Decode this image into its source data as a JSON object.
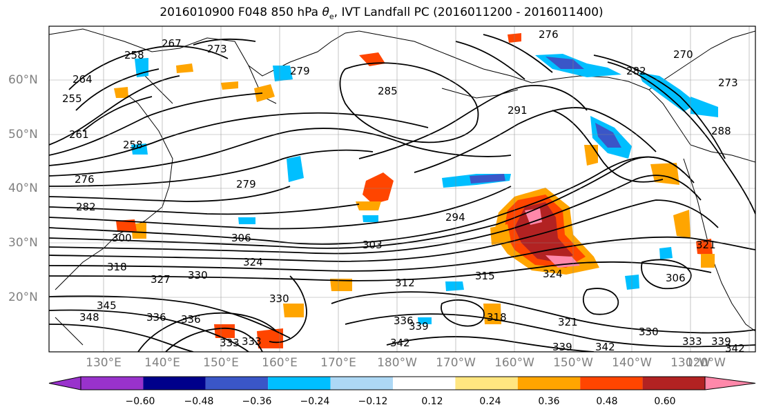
{
  "title_pre": "2016010900 F048 850 hPa ",
  "title_symbol": "θ",
  "title_sub": "e",
  "title_post": ", IVT Landfall PC (2016011200 - 2016011400)",
  "lat_labels": [
    "60°N",
    "50°N",
    "40°N",
    "30°N",
    "20°N"
  ],
  "lon_labels": [
    "130°E",
    "140°E",
    "150°E",
    "160°E",
    "170°E",
    "180°W",
    "170°W",
    "160°W",
    "150°W",
    "140°W",
    "130°W",
    "120°W"
  ],
  "colorbar": {
    "colors": [
      "#9932cc",
      "#00008b",
      "#3a56c8",
      "#00bfff",
      "#add8f5",
      "#ffffff",
      "#ffe680",
      "#ffa500",
      "#ff4500",
      "#b22222",
      "#ff88aa"
    ],
    "tick_labels": [
      "−0.60",
      "−0.48",
      "−0.36",
      "−0.24",
      "−0.12",
      "0.12",
      "0.24",
      "0.36",
      "0.48",
      "0.60"
    ]
  },
  "contour_labels": [
    "267",
    "273",
    "264",
    "258",
    "255",
    "261",
    "258",
    "276",
    "282",
    "285",
    "279",
    "270",
    "282",
    "291",
    "273",
    "276",
    "279",
    "288",
    "294",
    "306",
    "300",
    "303",
    "318",
    "321",
    "324",
    "327",
    "330",
    "315",
    "312",
    "324",
    "306",
    "336",
    "339",
    "342",
    "333",
    "330",
    "333",
    "339",
    "342",
    "336",
    "348",
    "345",
    "318",
    "321",
    "330",
    "333",
    "336",
    "339",
    "342"
  ]
}
